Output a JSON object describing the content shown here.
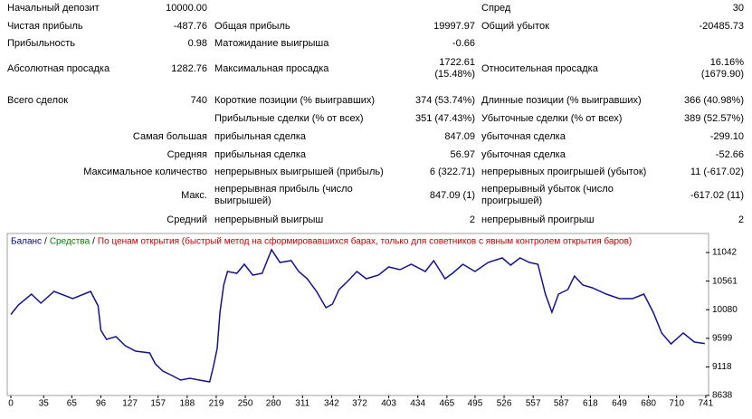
{
  "report": {
    "rows": [
      [
        "Начальный депозит",
        "10000.00",
        null,
        null,
        "Спред",
        "30"
      ],
      [
        "Чистая прибыль",
        "-487.76",
        "Общая прибыль",
        "19997.97",
        "Общий убыток",
        "-20485.73"
      ],
      [
        "Прибыльность",
        "0.98",
        "Матожидание выигрыша",
        "-0.66",
        null,
        null
      ],
      [
        "Абсолютная просадка",
        "1282.76",
        "Максимальная просадка",
        "1722.61\n(15.48%)",
        "Относительная просадка",
        "16.16%\n(1679.90)"
      ],
      [
        "Всего сделок",
        "740",
        "Короткие позиции (% выигравших)",
        "374 (53.74%)",
        "Длинные позиции (% выигравших)",
        "366 (40.98%)"
      ],
      [
        null,
        null,
        "Прибыльные сделки (% от всех)",
        "351 (47.43%)",
        "Убыточные сделки (% от всех)",
        "389 (52.57%)"
      ],
      [
        "Самая большая",
        null,
        "прибыльная сделка",
        "847.09",
        "убыточная сделка",
        "-299.10"
      ],
      [
        "Средняя",
        null,
        "прибыльная сделка",
        "56.97",
        "убыточная сделка",
        "-52.66"
      ],
      [
        "Максимальное количество",
        null,
        "непрерывных выигрышей (прибыль)",
        "6 (322.71)",
        "непрерывных проигрышей (убыток)",
        "11 (-617.02)"
      ],
      [
        "Макс.",
        null,
        "непрерывная прибыль (число\nвыигрышей)",
        "847.09 (1)",
        "непрерывный убыток (число\nпроигрышей)",
        "-617.02 (11)"
      ],
      [
        "Средний",
        null,
        "непрерывный выигрыш",
        "2",
        "непрерывный проигрыш",
        "2"
      ]
    ]
  },
  "chart_data": {
    "type": "line",
    "legend": [
      {
        "text": "Баланс",
        "color": "#000080"
      },
      {
        "text": "/",
        "color": "#000000"
      },
      {
        "text": "Средства",
        "color": "#008000"
      },
      {
        "text": "/",
        "color": "#000000"
      },
      {
        "text": "По ценам открытия (быстрый метод на сформировавшихся барах, только для советников с явным контролем открытия баров)",
        "color": "#c00000"
      }
    ],
    "x": [
      0,
      8,
      22,
      32,
      46,
      66,
      85,
      93,
      96,
      102,
      112,
      122,
      133,
      148,
      154,
      162,
      172,
      181,
      191,
      201,
      212,
      216,
      220,
      223,
      227,
      231,
      241,
      249,
      258,
      268,
      278,
      287,
      299,
      307,
      316,
      326,
      336,
      343,
      350,
      360,
      369,
      379,
      392,
      403,
      415,
      427,
      442,
      451,
      463,
      471,
      482,
      495,
      509,
      524,
      533,
      543,
      553,
      562,
      570,
      577,
      584,
      594,
      601,
      610,
      620,
      635,
      649,
      663,
      675,
      685,
      694,
      704,
      717,
      729,
      740
    ],
    "series": [
      {
        "color": "#14148c",
        "values": [
          10000,
          10160,
          10343,
          10190,
          10388,
          10267,
          10388,
          10145,
          9734,
          9582,
          9627,
          9475,
          9384,
          9353,
          9170,
          9049,
          8973,
          8897,
          8927,
          8897,
          8866,
          9125,
          9430,
          10038,
          10495,
          10723,
          10693,
          10845,
          10662,
          10693,
          11089,
          10875,
          10906,
          10723,
          10601,
          10388,
          10114,
          10175,
          10419,
          10571,
          10723,
          10601,
          10662,
          10799,
          10753,
          10845,
          10723,
          10906,
          10601,
          10693,
          10845,
          10723,
          10875,
          10951,
          10830,
          10951,
          10875,
          10845,
          10343,
          10038,
          10343,
          10419,
          10647,
          10495,
          10449,
          10343,
          10267,
          10267,
          10343,
          10038,
          9688,
          9506,
          9688,
          9536,
          9512
        ]
      }
    ],
    "xlim": [
      0,
      745
    ],
    "xticks": [
      0,
      35,
      65,
      96,
      127,
      157,
      188,
      219,
      250,
      280,
      311,
      342,
      372,
      403,
      434,
      465,
      495,
      526,
      557,
      587,
      618,
      649,
      680,
      710,
      741
    ],
    "ylim": [
      8638,
      11362
    ],
    "yticks": [
      8638,
      9118,
      9599,
      10080,
      10561,
      11042
    ]
  }
}
